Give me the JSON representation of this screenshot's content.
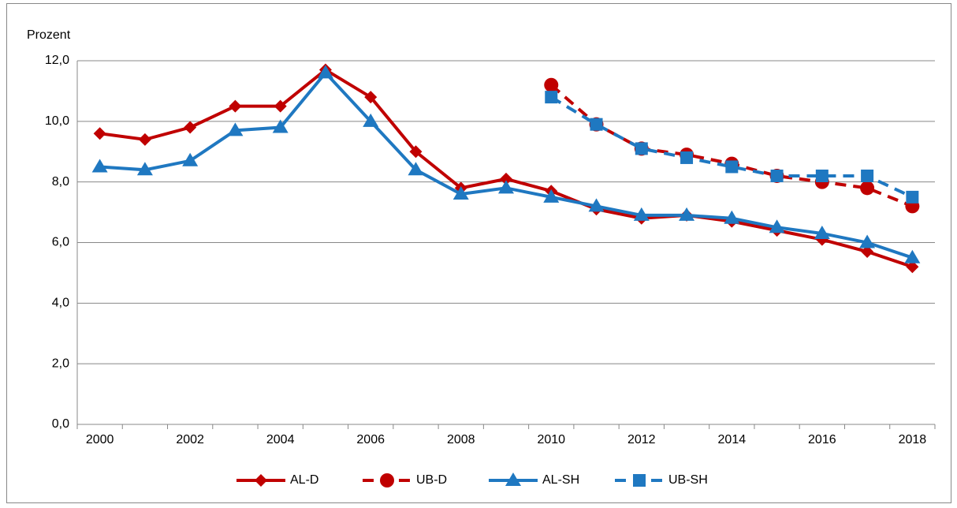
{
  "chart_data": {
    "type": "line",
    "y_label": "Prozent",
    "categories": [
      "2000",
      null,
      "2002",
      null,
      "2004",
      null,
      "2006",
      null,
      "2008",
      null,
      "2010",
      null,
      "2012",
      null,
      "2014",
      null,
      "2016",
      null,
      "2018"
    ],
    "series": [
      {
        "name": "AL-D",
        "color": "#c00000",
        "marker": "diamond",
        "dashed": false,
        "values": [
          9.6,
          9.4,
          9.8,
          10.5,
          10.5,
          11.7,
          10.8,
          9.0,
          7.8,
          8.1,
          7.7,
          7.1,
          6.8,
          6.9,
          6.7,
          6.4,
          6.1,
          5.7,
          5.2
        ]
      },
      {
        "name": "UB-D",
        "color": "#c00000",
        "marker": "circle",
        "dashed": true,
        "values": [
          null,
          null,
          null,
          null,
          null,
          null,
          null,
          null,
          null,
          null,
          11.2,
          9.9,
          9.1,
          8.9,
          8.6,
          8.2,
          8.0,
          7.8,
          7.2
        ]
      },
      {
        "name": "AL-SH",
        "color": "#1f78c1",
        "marker": "triangle",
        "dashed": false,
        "values": [
          8.5,
          8.4,
          8.7,
          9.7,
          9.8,
          11.6,
          10.0,
          8.4,
          7.6,
          7.8,
          7.5,
          7.2,
          6.9,
          6.9,
          6.8,
          6.5,
          6.3,
          6.0,
          5.5
        ]
      },
      {
        "name": "UB-SH",
        "color": "#1f78c1",
        "marker": "square",
        "dashed": true,
        "values": [
          null,
          null,
          null,
          null,
          null,
          null,
          null,
          null,
          null,
          null,
          10.8,
          9.9,
          9.1,
          8.8,
          8.5,
          8.2,
          8.2,
          8.2,
          7.5
        ]
      }
    ],
    "ylim": [
      0,
      12
    ],
    "yticks": [
      {
        "value": 0,
        "label": "0,0"
      },
      {
        "value": 2,
        "label": "2,0"
      },
      {
        "value": 4,
        "label": "4,0"
      },
      {
        "value": 6,
        "label": "6,0"
      },
      {
        "value": 8,
        "label": "8,0"
      },
      {
        "value": 10,
        "label": "10,0"
      },
      {
        "value": 12,
        "label": "12,0"
      }
    ],
    "grid": true,
    "legend": "bottom"
  }
}
